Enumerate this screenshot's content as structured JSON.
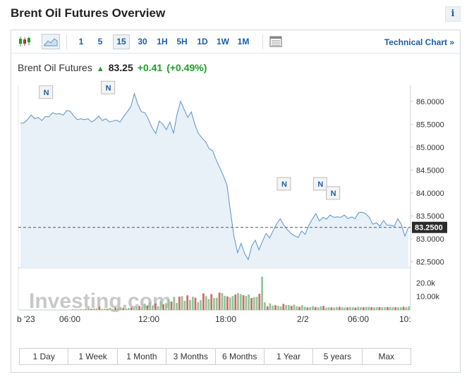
{
  "page": {
    "title": "Brent Oil Futures Overview",
    "info_label": "i"
  },
  "toolbar": {
    "timeframes": [
      "1",
      "5",
      "15",
      "30",
      "1H",
      "5H",
      "1D",
      "1W",
      "1M"
    ],
    "active_timeframe": "15",
    "technical_chart_label": "Technical Chart »",
    "icons": [
      "candlestick-icon",
      "area-chart-icon",
      "table-icon"
    ]
  },
  "quote": {
    "name": "Brent Oil Futures",
    "price": "83.25",
    "change": "+0.41",
    "change_pct": "(+0.49%)",
    "direction": "up"
  },
  "colors": {
    "accent": "#1a5fa8",
    "up": "#1e9e2a",
    "line": "#5b93c9",
    "area": "#e8f0f8",
    "vol_up": "#8fc79a",
    "vol_down": "#d56b6b"
  },
  "chart_data": {
    "type": "area",
    "price_axis": {
      "ticks": [
        86.0,
        85.5,
        85.0,
        84.5,
        84.0,
        83.5,
        83.0,
        82.5
      ],
      "tick_labels": [
        "86.0000",
        "85.5000",
        "85.0000",
        "84.5000",
        "84.0000",
        "83.5000",
        "83.0000",
        "82.5000"
      ],
      "range": [
        82.37,
        86.35
      ]
    },
    "current_price_label": "83.2500",
    "current_price": 83.25,
    "x_tick_labels": [
      "b '23",
      "06:00",
      "12:00",
      "18:00",
      "2/2",
      "06:00",
      "10:"
    ],
    "watermark": "Investing.com",
    "news_markers": [
      "N",
      "N",
      "N",
      "N",
      "N"
    ],
    "volume_axis": {
      "tick_labels": [
        "20.0k",
        "10.00k"
      ],
      "ticks": [
        20000,
        10000
      ],
      "max": 27000
    },
    "prices": [
      85.52,
      85.53,
      85.6,
      85.7,
      85.62,
      85.65,
      85.58,
      85.67,
      85.66,
      85.75,
      85.72,
      85.73,
      85.7,
      85.8,
      85.78,
      85.68,
      85.6,
      85.62,
      85.6,
      85.62,
      85.55,
      85.6,
      85.68,
      85.58,
      85.62,
      85.55,
      85.57,
      85.59,
      85.55,
      85.67,
      85.77,
      85.88,
      86.17,
      85.93,
      85.77,
      85.75,
      85.6,
      85.42,
      85.3,
      85.57,
      85.5,
      85.38,
      85.55,
      85.3,
      85.72,
      86.0,
      85.82,
      85.65,
      85.77,
      85.5,
      85.3,
      85.2,
      85.12,
      84.97,
      84.92,
      84.72,
      84.55,
      84.38,
      84.18,
      83.6,
      83.05,
      82.7,
      82.9,
      82.68,
      82.55,
      82.85,
      82.97,
      82.76,
      82.95,
      83.12,
      83.02,
      83.18,
      83.33,
      83.44,
      83.3,
      83.2,
      83.12,
      83.07,
      83.03,
      83.17,
      83.1,
      83.29,
      83.43,
      83.55,
      83.39,
      83.47,
      83.43,
      83.52,
      83.47,
      83.48,
      83.47,
      83.52,
      83.44,
      83.48,
      83.44,
      83.57,
      83.58,
      83.55,
      83.47,
      83.32,
      83.35,
      83.28,
      83.4,
      83.3,
      83.3,
      83.27,
      83.44,
      83.32,
      83.06,
      83.25
    ],
    "volumes": [
      0,
      0,
      0,
      0,
      0,
      0,
      0,
      0,
      0,
      0,
      0,
      0,
      0,
      0,
      0,
      0,
      0,
      0,
      0,
      0,
      500,
      300,
      400,
      600,
      300,
      1200,
      1500,
      900,
      1100,
      1300,
      2500,
      800,
      1000,
      900,
      1600,
      700,
      1800,
      1500,
      1900,
      1500,
      1200,
      1500,
      1800,
      1700,
      2400,
      3000,
      2200,
      4600,
      3300,
      5800,
      3400,
      4900,
      2700,
      6500,
      4200,
      5000,
      7400,
      6200,
      9600,
      5300,
      9900,
      10300,
      6800,
      10800,
      7400,
      9800,
      9100,
      5700,
      7200,
      12300,
      10200,
      8100,
      11700,
      8800,
      9000,
      12900,
      12500,
      10500,
      10000,
      9300,
      10300,
      11500,
      12500,
      11800,
      10900,
      10400,
      11500,
      8800,
      9500,
      9700,
      12000,
      24500,
      5600,
      2800,
      4900,
      3200,
      3600,
      3100,
      2700,
      4500,
      3600,
      3700,
      3000,
      3900,
      2700,
      2400,
      3600,
      2400,
      1900,
      2100,
      2800,
      2200,
      2000,
      2800,
      3000,
      1700,
      2000,
      1900,
      1800,
      2200,
      2400,
      2000,
      1800,
      1900,
      2200,
      2000,
      1800,
      2300,
      2100,
      2000,
      2300,
      2400,
      2100,
      2000,
      2000,
      2100,
      2100,
      2000,
      2100,
      2100,
      2000,
      2000,
      2100,
      2100,
      2400,
      2000,
      2700
    ]
  },
  "periods": [
    "1 Day",
    "1 Week",
    "1 Month",
    "3 Months",
    "6 Months",
    "1 Year",
    "5 years",
    "Max"
  ]
}
